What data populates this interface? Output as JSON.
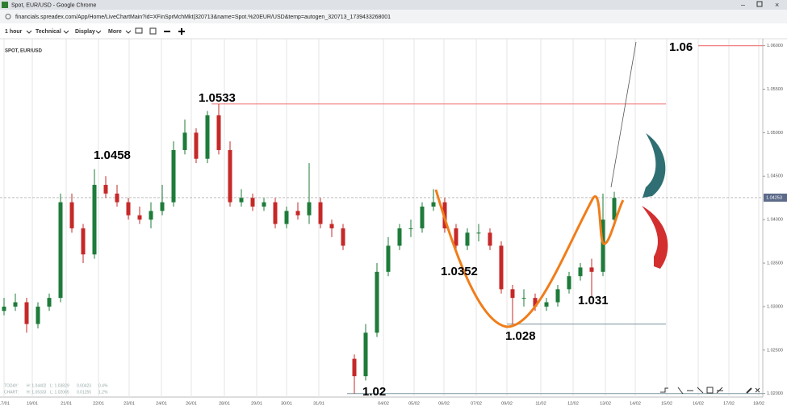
{
  "window": {
    "title": "Spot, EUR/USD - Google Chrome"
  },
  "address_bar": {
    "url": "financials.spreadex.com/App/Home/LiveChartMain?id=XFinSprMchMkt|320713&name=Spot.%20EUR/USD&temp=autogen_320713_1739433268001"
  },
  "toolbar": {
    "items": [
      "1 hour",
      "Technical",
      "Display",
      "More"
    ]
  },
  "info_panel": {
    "today": [
      "TODAY:",
      "H: 1.04402",
      "L: 1.03829",
      "0.00423",
      "0.4%"
    ],
    "chart": [
      "CHART:",
      "H: 1.05333",
      "L: 1.02065",
      "0.01255",
      "1.2%"
    ]
  },
  "chart_data": {
    "type": "candlestick",
    "title": "SPOT, EUR/USD",
    "up_color": "#1e7b3a",
    "down_color": "#c62828",
    "open": [
      1.0295,
      1.03,
      1.0305,
      1.028,
      1.03,
      1.031,
      1.042,
      1.039,
      1.036,
      1.044,
      1.043,
      1.042,
      1.0405,
      1.04,
      1.041,
      1.042,
      1.048,
      1.05,
      1.047,
      1.052,
      1.048,
      1.042,
      1.0425,
      1.0415,
      1.042,
      1.0395,
      1.041,
      1.0405,
      1.042,
      1.0395,
      1.039,
      1.024,
      1.022,
      1.027,
      1.034,
      1.037,
      1.039,
      1.039,
      1.0415,
      1.042,
      1.039,
      1.037,
      1.0385,
      1.0385,
      1.037,
      1.032,
      1.031,
      1.031,
      1.03,
      1.0305,
      1.032,
      1.0335,
      1.0345,
      1.034,
      1.04
    ],
    "high": [
      1.031,
      1.0315,
      1.031,
      1.0305,
      1.0315,
      1.043,
      1.043,
      1.0395,
      1.0458,
      1.045,
      1.044,
      1.0425,
      1.0415,
      1.042,
      1.044,
      1.049,
      1.0515,
      1.0505,
      1.0525,
      1.0533,
      1.049,
      1.0435,
      1.043,
      1.0425,
      1.0425,
      1.0415,
      1.042,
      1.0465,
      1.0425,
      1.04,
      1.0395,
      1.0245,
      1.028,
      1.035,
      1.038,
      1.0395,
      1.04,
      1.042,
      1.0435,
      1.0425,
      1.0395,
      1.039,
      1.0395,
      1.039,
      1.0375,
      1.0325,
      1.032,
      1.0315,
      1.031,
      1.0325,
      1.034,
      1.035,
      1.0355,
      1.043,
      1.0432
    ],
    "low": [
      1.029,
      1.0295,
      1.027,
      1.0275,
      1.0295,
      1.0305,
      1.0385,
      1.035,
      1.0355,
      1.0425,
      1.0415,
      1.04,
      1.0395,
      1.039,
      1.0405,
      1.0415,
      1.0475,
      1.0465,
      1.0465,
      1.0475,
      1.0415,
      1.0415,
      1.041,
      1.041,
      1.039,
      1.039,
      1.04,
      1.0395,
      1.039,
      1.038,
      1.0365,
      1.02,
      1.0215,
      1.0265,
      1.0335,
      1.0365,
      1.038,
      1.0385,
      1.041,
      1.0385,
      1.0365,
      1.0365,
      1.0375,
      1.0365,
      1.0315,
      1.028,
      1.03,
      1.0295,
      1.0295,
      1.03,
      1.0315,
      1.033,
      1.031,
      1.0335,
      1.0395
    ],
    "close": [
      1.03,
      1.0305,
      1.028,
      1.03,
      1.031,
      1.042,
      1.039,
      1.036,
      1.044,
      1.043,
      1.042,
      1.0405,
      1.04,
      1.041,
      1.042,
      1.048,
      1.05,
      1.047,
      1.052,
      1.048,
      1.042,
      1.0425,
      1.0415,
      1.042,
      1.0395,
      1.041,
      1.0405,
      1.042,
      1.0395,
      1.039,
      1.037,
      1.022,
      1.027,
      1.034,
      1.037,
      1.039,
      1.039,
      1.0415,
      1.042,
      1.039,
      1.037,
      1.0385,
      1.0385,
      1.037,
      1.032,
      1.031,
      1.031,
      1.03,
      1.0305,
      1.032,
      1.0335,
      1.0345,
      1.034,
      1.04,
      1.0425
    ],
    "ylim": [
      1.0196,
      1.0608
    ],
    "yticks": [
      {
        "value": 1.02,
        "label": "1.02000"
      },
      {
        "value": 1.025,
        "label": "1.02500"
      },
      {
        "value": 1.03,
        "label": "1.03000"
      },
      {
        "value": 1.035,
        "label": "1.03500"
      },
      {
        "value": 1.04,
        "label": "1.04000"
      },
      {
        "value": 1.045,
        "label": "1.04500"
      },
      {
        "value": 1.05,
        "label": "1.05000"
      },
      {
        "value": 1.055,
        "label": "1.05500"
      },
      {
        "value": 1.06,
        "label": "1.06000"
      }
    ],
    "x_labels": [
      "17/01",
      "19/01",
      "21/01",
      "22/01",
      "23/01",
      "24/01",
      "26/01",
      "28/01",
      "29/01",
      "30/01",
      "31/01",
      "04/02",
      "05/02",
      "06/02",
      "07/02",
      "09/02",
      "11/02",
      "12/02",
      "13/02",
      "14/02",
      "15/02",
      "16/02",
      "17/02",
      "18/02"
    ],
    "current_price": 1.04253,
    "levels": [
      {
        "value": 1.0533,
        "color": "#f08080"
      },
      {
        "value": 1.06,
        "color": "#f08080"
      },
      {
        "value": 1.028,
        "color": "#90a4ae"
      },
      {
        "value": 1.02,
        "color": "#90a4ae"
      }
    ],
    "annotations": [
      "1.0533",
      "1.0458",
      "1.0352",
      "1.031",
      "1.028",
      "1.02",
      "1.06"
    ]
  }
}
